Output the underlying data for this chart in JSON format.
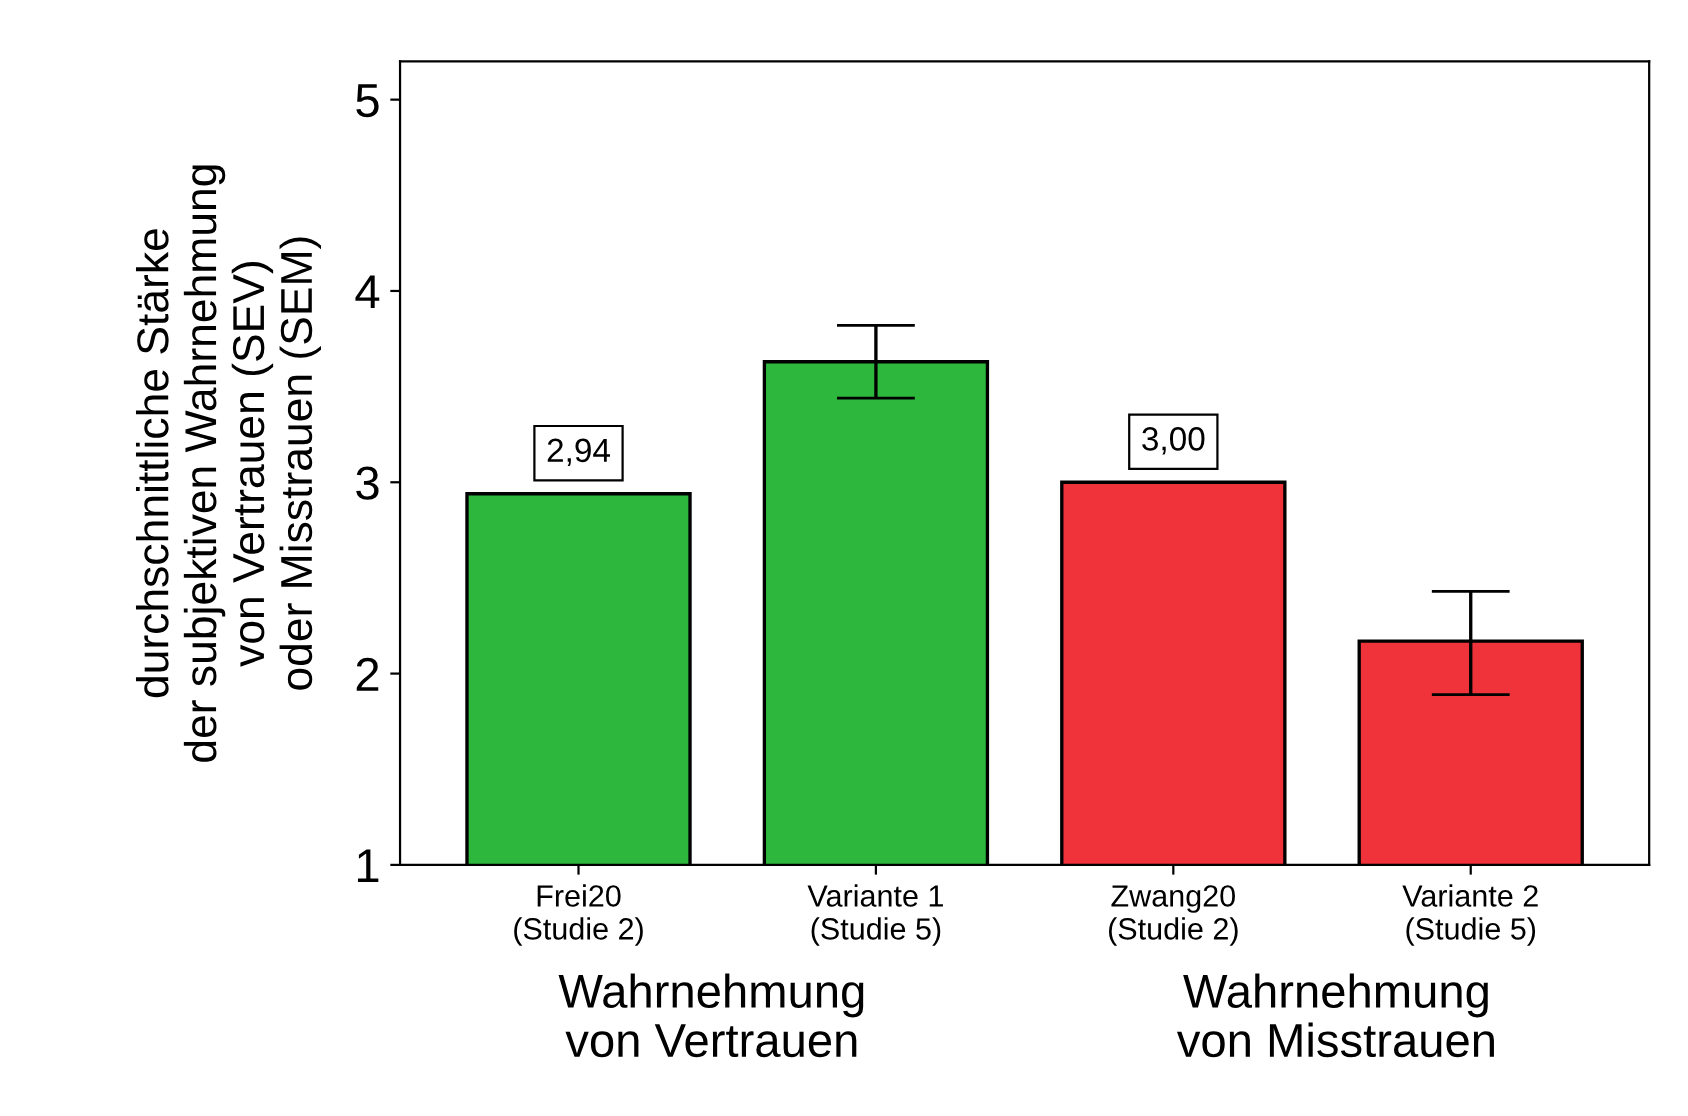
{
  "chart_data": {
    "type": "bar",
    "ylabel": "durchschnittliche Stärke\nder subjektiven Wahrnehmung\nvon Vertrauen (SEV)\noder Misstrauen (SEM)",
    "categories": [
      "Frei20\n(Studie 2)",
      "Variante 1\n(Studie 5)",
      "Zwang20\n(Studie 2)",
      "Variante 2\n(Studie 5)"
    ],
    "values": [
      2.94,
      3.63,
      3.0,
      2.17
    ],
    "colors": [
      "#2db83d",
      "#2db83d",
      "#f0323a",
      "#f0323a"
    ],
    "errors": [
      null,
      [
        3.44,
        3.82
      ],
      null,
      [
        1.89,
        2.43
      ]
    ],
    "value_labels": [
      "2,94",
      null,
      "3,00",
      null
    ],
    "annotations": [
      "Wahrnehmung\nvon Vertrauen",
      "Wahrnehmung\nvon Misstrauen"
    ],
    "ylim": [
      1,
      5.2
    ],
    "yticks": [
      1,
      2,
      3,
      4,
      5
    ],
    "grid": false
  }
}
